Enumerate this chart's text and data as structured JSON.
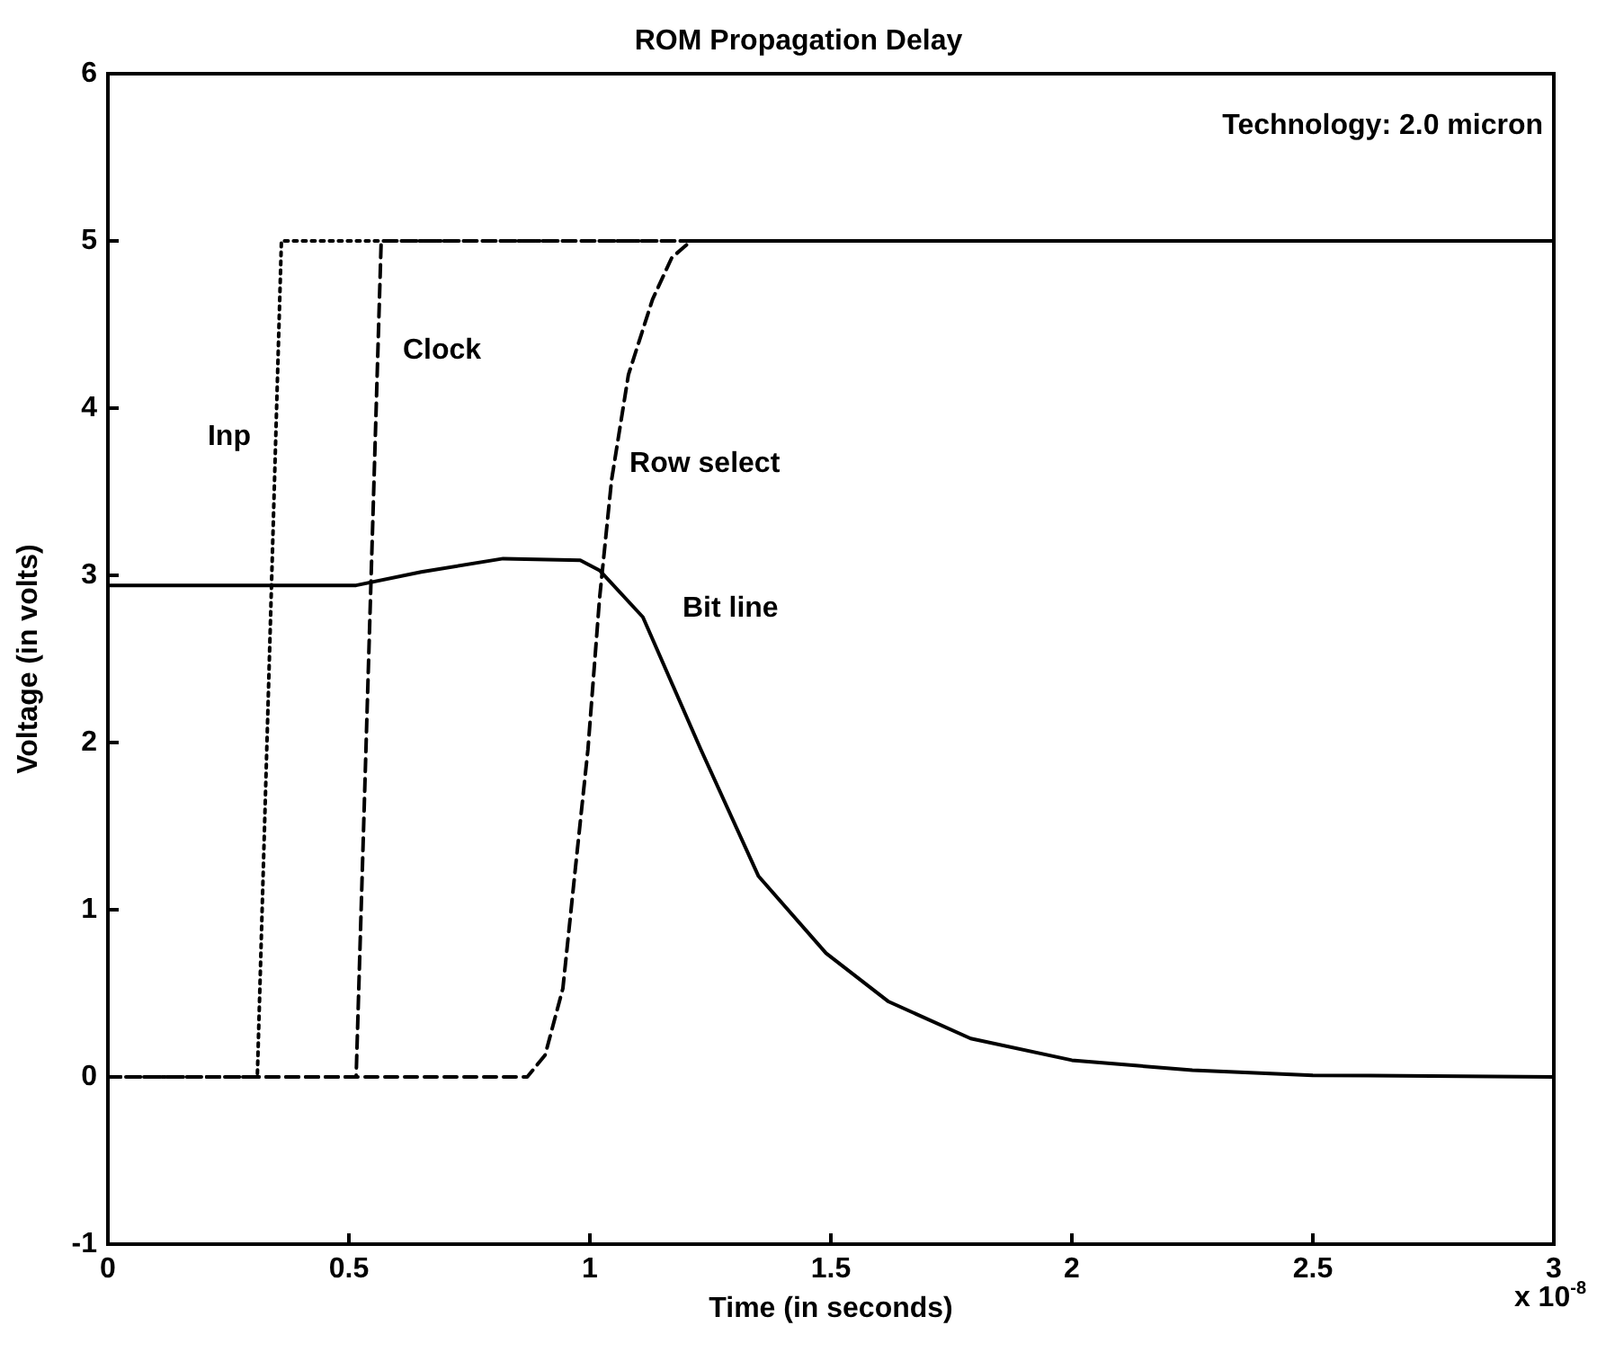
{
  "chart_data": {
    "type": "line",
    "title": "ROM Propagation Delay",
    "xlabel": "Time (in seconds)",
    "ylabel": "Voltage (in volts)",
    "xlim": [
      0,
      3
    ],
    "xticks": [
      0,
      0.5,
      1,
      1.5,
      2,
      2.5,
      3
    ],
    "ylim": [
      -1,
      6
    ],
    "yticks": [
      -1,
      0,
      1,
      2,
      3,
      4,
      5,
      6
    ],
    "grid": false,
    "legend": false,
    "marker": "none",
    "annotations": [
      "Technology: 2.0 micron",
      "x 10$^{-8}$"
    ],
    "series": [
      {
        "name": "Inp",
        "color": "#000000",
        "line_style": "dotted",
        "x": [
          0,
          0.31,
          0.36,
          3
        ],
        "values": [
          0,
          0,
          5,
          5
        ]
      },
      {
        "name": "Clock",
        "color": "#000000",
        "line_style": "dashed",
        "x": [
          0,
          0.515,
          0.567,
          3
        ],
        "values": [
          0,
          0,
          5,
          5
        ]
      },
      {
        "name": "Row select",
        "color": "#000000",
        "line_style": "dashed",
        "x": [
          0,
          0.87,
          0.907,
          0.944,
          0.97,
          0.996,
          1.02,
          1.045,
          1.08,
          1.13,
          1.17,
          1.21,
          3
        ],
        "values": [
          0,
          0,
          0.13,
          0.53,
          1.25,
          1.96,
          2.86,
          3.57,
          4.2,
          4.65,
          4.9,
          5,
          5
        ]
      },
      {
        "name": "Bit line",
        "color": "#000000",
        "line_style": "solid",
        "x": [
          0,
          0.515,
          0.65,
          0.82,
          0.98,
          1.02,
          1.11,
          1.23,
          1.35,
          1.49,
          1.62,
          1.79,
          2.0,
          2.25,
          2.5,
          3
        ],
        "values": [
          2.94,
          2.94,
          3.02,
          3.1,
          3.09,
          3.03,
          2.75,
          1.96,
          1.2,
          0.74,
          0.45,
          0.23,
          0.1,
          0.04,
          0.01,
          0
        ]
      }
    ]
  }
}
